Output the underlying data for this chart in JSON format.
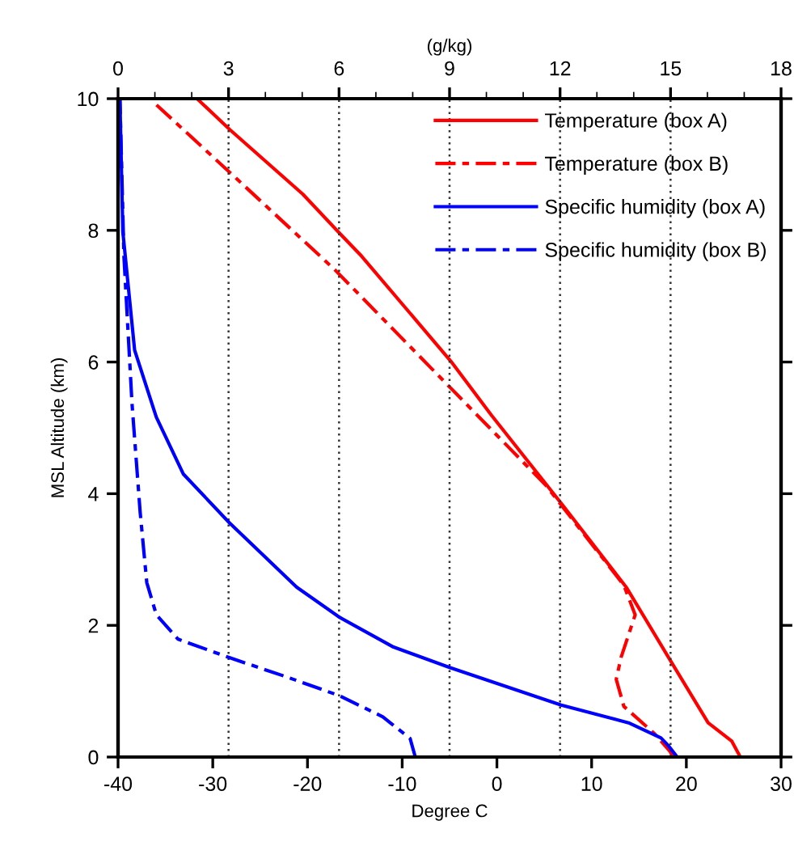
{
  "chart_data": {
    "type": "line",
    "xlabel": "Degree C",
    "ylabel": "MSL Altitude (km)",
    "x2label": "(g/kg)",
    "xlim": [
      -40,
      30
    ],
    "xticks": [
      -40,
      -30,
      -20,
      -10,
      0,
      10,
      20,
      30
    ],
    "x2lim": [
      0,
      18
    ],
    "x2ticks": [
      0,
      3,
      6,
      9,
      12,
      15,
      18
    ],
    "ylim": [
      0,
      10
    ],
    "yticks": [
      0,
      2,
      4,
      6,
      8,
      10
    ],
    "grid": "x",
    "legend": "top right",
    "marker": "none",
    "series": [
      {
        "name": "Temperature (box A)",
        "color": "#ff0000",
        "line_style": "solid",
        "x": [
          25.7,
          24.8,
          22.3,
          18.3,
          13.7,
          6.87,
          -0.57,
          -4.85,
          -14.3,
          -16.5,
          -20.5,
          -28.2,
          -31.66
        ],
        "values": [
          0,
          0.24,
          0.52,
          1.47,
          2.57,
          3.84,
          5.19,
          6.01,
          7.61,
          7.94,
          8.55,
          9.53,
          10
        ]
      },
      {
        "name": "Temperature (box B)",
        "color": "#ff0000",
        "line_style": "dashed",
        "x": [
          18.6,
          18.3,
          16.6,
          13.4,
          12.6,
          13.1,
          14.6,
          13.4,
          5.15,
          -4.85,
          -17.1,
          -28.2,
          -36.2
        ],
        "values": [
          0,
          0.08,
          0.36,
          0.77,
          1.18,
          1.51,
          2.16,
          2.61,
          4.13,
          5.6,
          7.4,
          8.88,
          9.94
        ]
      },
      {
        "name": "Specific humidity (box A)",
        "color": "#0000ff",
        "line_style": "solid",
        "axis": "x2",
        "x": [
          15.18,
          14.93,
          14.74,
          13.86,
          12.03,
          9.0,
          7.48,
          6.02,
          4.85,
          3.02,
          1.77,
          1.04,
          0.45,
          0.13,
          0.05
        ],
        "values": [
          0,
          0.18,
          0.29,
          0.52,
          0.79,
          1.36,
          1.67,
          2.12,
          2.58,
          3.56,
          4.3,
          5.16,
          6.18,
          7.98,
          10
        ]
      },
      {
        "name": "Specific humidity (box B)",
        "color": "#0000ff",
        "line_style": "dashed",
        "axis": "x2",
        "x": [
          8.07,
          7.93,
          7.19,
          6.02,
          4.56,
          3.02,
          1.63,
          1.04,
          0.78,
          0.6,
          0.38,
          0.16,
          0.05
        ],
        "values": [
          0,
          0.28,
          0.61,
          0.93,
          1.22,
          1.51,
          1.79,
          2.16,
          2.65,
          3.72,
          5.36,
          7.6,
          10
        ]
      }
    ]
  }
}
